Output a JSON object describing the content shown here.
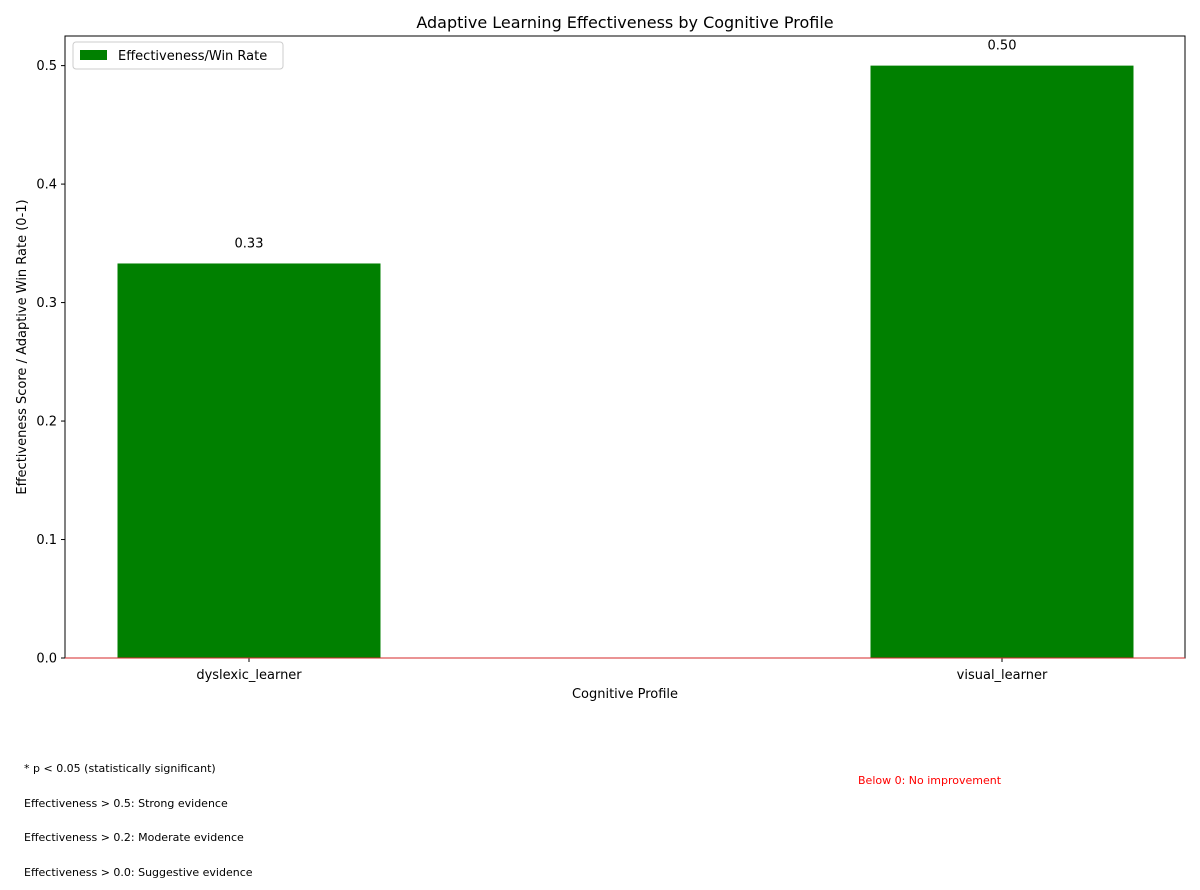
{
  "chart_data": {
    "type": "bar",
    "title": "Adaptive Learning Effectiveness by Cognitive Profile",
    "xlabel": "Cognitive Profile",
    "ylabel": "Effectiveness Score / Adaptive Win Rate (0-1)",
    "categories": [
      "dyslexic_learner",
      "visual_learner"
    ],
    "series": [
      {
        "name": "Effectiveness/Win Rate",
        "values": [
          0.333,
          0.5
        ],
        "labels": [
          "0.33",
          "0.50"
        ],
        "color": "#008000"
      }
    ],
    "ylim": [
      0,
      0.525
    ],
    "yticks": [
      "0.0",
      "0.1",
      "0.2",
      "0.3",
      "0.4",
      "0.5"
    ],
    "baseline": 0,
    "baseline_color": "#d62728",
    "grid": false,
    "legend_position": "upper-left"
  },
  "notes": {
    "lines": [
      "* p < 0.05 (statistically significant)",
      "Effectiveness > 0.5: Strong evidence",
      "Effectiveness > 0.2: Moderate evidence",
      "Effectiveness > 0.0: Suggestive evidence"
    ],
    "negative_note": "Below 0: No improvement",
    "negative_note_color": "#ff0000"
  }
}
